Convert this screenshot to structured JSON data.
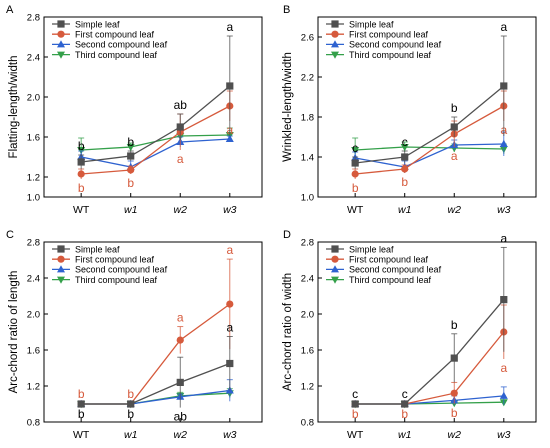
{
  "chart_data": [
    {
      "panel": "A",
      "type": "line",
      "ylabel": "Flatting-length/width",
      "xlabel": "",
      "categories": [
        "WT",
        "w1",
        "w2",
        "w3"
      ],
      "ylim": [
        1.0,
        2.8
      ],
      "yticks": [
        1.0,
        1.2,
        1.6,
        2.0,
        2.4,
        2.8
      ],
      "legend_position": "top-left",
      "series": [
        {
          "name": "Simple leaf",
          "color": "#505050",
          "marker": "square",
          "values": [
            1.35,
            1.41,
            1.7,
            2.11
          ],
          "errors": [
            0.07,
            0.05,
            0.13,
            0.5
          ],
          "letters": [
            "b",
            "b",
            "ab",
            "a"
          ],
          "letter_color": "#000000",
          "letter_side": [
            "above",
            "above",
            "above",
            "above"
          ]
        },
        {
          "name": "First compound leaf",
          "color": "#d65a3c",
          "marker": "circle",
          "values": [
            1.23,
            1.27,
            1.65,
            1.91
          ],
          "errors": [
            0.05,
            0.04,
            0.18,
            0.15
          ],
          "letters": [
            "b",
            "b",
            "a",
            "a"
          ],
          "letter_color": "#d65a3c",
          "letter_side": [
            "below",
            "below",
            "below",
            "below"
          ]
        },
        {
          "name": "Second compound leaf",
          "color": "#2e62d0",
          "marker": "triangle-up",
          "values": [
            1.4,
            1.3,
            1.55,
            1.58
          ],
          "errors": [
            0.06,
            0.06,
            0.05,
            0.03
          ],
          "letters": [],
          "letter_color": "#2e62d0",
          "letter_side": []
        },
        {
          "name": "Third compound leaf",
          "color": "#34a04a",
          "marker": "triangle-down",
          "values": [
            1.47,
            1.5,
            1.61,
            1.62
          ],
          "errors": [
            0.12,
            0.04,
            0.04,
            0.07
          ],
          "letters": [],
          "letter_color": "#34a04a",
          "letter_side": []
        }
      ]
    },
    {
      "panel": "B",
      "type": "line",
      "ylabel": "Wrinkled-length/width",
      "xlabel": "",
      "categories": [
        "WT",
        "w1",
        "w2",
        "w3"
      ],
      "ylim": [
        1.0,
        2.8
      ],
      "yticks": [
        1.0,
        1.4,
        1.8,
        2.2,
        2.6
      ],
      "legend_position": "top-left",
      "series": [
        {
          "name": "Simple leaf",
          "color": "#505050",
          "marker": "square",
          "values": [
            1.34,
            1.4,
            1.7,
            2.11
          ],
          "errors": [
            0.06,
            0.06,
            0.1,
            0.5
          ],
          "letters": [
            "c",
            "c",
            "b",
            "a"
          ],
          "letter_color": "#000000",
          "letter_side": [
            "above",
            "above",
            "above",
            "above"
          ]
        },
        {
          "name": "First compound leaf",
          "color": "#d65a3c",
          "marker": "circle",
          "values": [
            1.23,
            1.28,
            1.63,
            1.91
          ],
          "errors": [
            0.05,
            0.04,
            0.13,
            0.15
          ],
          "letters": [
            "b",
            "b",
            "a",
            "a"
          ],
          "letter_color": "#d65a3c",
          "letter_side": [
            "below",
            "below",
            "below",
            "below"
          ]
        },
        {
          "name": "Second compound leaf",
          "color": "#2e62d0",
          "marker": "triangle-up",
          "values": [
            1.39,
            1.3,
            1.52,
            1.53
          ],
          "errors": [
            0.06,
            0.06,
            0.05,
            0.12
          ],
          "letters": [],
          "letter_color": "#2e62d0",
          "letter_side": []
        },
        {
          "name": "Third compound leaf",
          "color": "#34a04a",
          "marker": "triangle-down",
          "values": [
            1.47,
            1.5,
            1.49,
            1.48
          ],
          "errors": [
            0.12,
            0.05,
            0.04,
            0.05
          ],
          "letters": [],
          "letter_color": "#34a04a",
          "letter_side": []
        }
      ]
    },
    {
      "panel": "C",
      "type": "line",
      "ylabel": "Arc-chord ratio of length",
      "xlabel": "",
      "categories": [
        "WT",
        "w1",
        "w2",
        "w3"
      ],
      "ylim": [
        0.8,
        2.8
      ],
      "yticks": [
        0.8,
        1.2,
        1.6,
        2.0,
        2.4,
        2.8
      ],
      "legend_position": "top-left",
      "series": [
        {
          "name": "Simple leaf",
          "color": "#505050",
          "marker": "square",
          "values": [
            1.0,
            1.0,
            1.24,
            1.45
          ],
          "errors": [
            0.01,
            0.01,
            0.28,
            0.3
          ],
          "letters": [
            "b",
            "b",
            "ab",
            "a"
          ],
          "letter_color": "#000000",
          "letter_side": [
            "below",
            "below",
            "below",
            "above"
          ]
        },
        {
          "name": "First compound leaf",
          "color": "#d65a3c",
          "marker": "circle",
          "values": [
            1.0,
            1.0,
            1.71,
            2.11
          ],
          "errors": [
            0.01,
            0.01,
            0.15,
            0.5
          ],
          "letters": [
            "b",
            "b",
            "a",
            "a"
          ],
          "letter_color": "#d65a3c",
          "letter_side": [
            "above",
            "above",
            "above",
            "above"
          ]
        },
        {
          "name": "Second compound leaf",
          "color": "#2e62d0",
          "marker": "triangle-up",
          "values": [
            1.0,
            1.0,
            1.08,
            1.15
          ],
          "errors": [
            0.01,
            0.01,
            0.03,
            0.12
          ],
          "letters": [],
          "letter_color": "#2e62d0",
          "letter_side": []
        },
        {
          "name": "Third compound leaf",
          "color": "#34a04a",
          "marker": "triangle-down",
          "values": [
            1.0,
            1.0,
            1.09,
            1.12
          ],
          "errors": [
            0.01,
            0.01,
            0.04,
            0.05
          ],
          "letters": [],
          "letter_color": "#34a04a",
          "letter_side": []
        }
      ]
    },
    {
      "panel": "D",
      "type": "line",
      "ylabel": "Arc-chord ratio of width",
      "xlabel": "",
      "categories": [
        "WT",
        "w1",
        "w2",
        "w3"
      ],
      "ylim": [
        0.8,
        2.8
      ],
      "yticks": [
        0.8,
        1.2,
        1.6,
        2.0,
        2.4,
        2.8
      ],
      "legend_position": "top-left",
      "series": [
        {
          "name": "Simple leaf",
          "color": "#505050",
          "marker": "square",
          "values": [
            1.0,
            1.0,
            1.51,
            2.16
          ],
          "errors": [
            0.01,
            0.01,
            0.27,
            0.58
          ],
          "letters": [
            "c",
            "c",
            "b",
            "a"
          ],
          "letter_color": "#000000",
          "letter_side": [
            "above",
            "above",
            "above",
            "above"
          ]
        },
        {
          "name": "First compound leaf",
          "color": "#d65a3c",
          "marker": "circle",
          "values": [
            1.0,
            1.0,
            1.12,
            1.8
          ],
          "errors": [
            0.01,
            0.01,
            0.12,
            0.3
          ],
          "letters": [
            "b",
            "b",
            "b",
            "a"
          ],
          "letter_color": "#d65a3c",
          "letter_side": [
            "below",
            "below",
            "below",
            "below"
          ]
        },
        {
          "name": "Second compound leaf",
          "color": "#2e62d0",
          "marker": "triangle-up",
          "values": [
            1.0,
            1.0,
            1.04,
            1.09
          ],
          "errors": [
            0.01,
            0.01,
            0.05,
            0.1
          ],
          "letters": [],
          "letter_color": "#2e62d0",
          "letter_side": []
        },
        {
          "name": "Third compound leaf",
          "color": "#34a04a",
          "marker": "triangle-down",
          "values": [
            1.0,
            1.0,
            1.01,
            1.02
          ],
          "errors": [
            0.01,
            0.01,
            0.02,
            0.02
          ],
          "letters": [],
          "letter_color": "#34a04a",
          "letter_side": []
        }
      ]
    }
  ]
}
